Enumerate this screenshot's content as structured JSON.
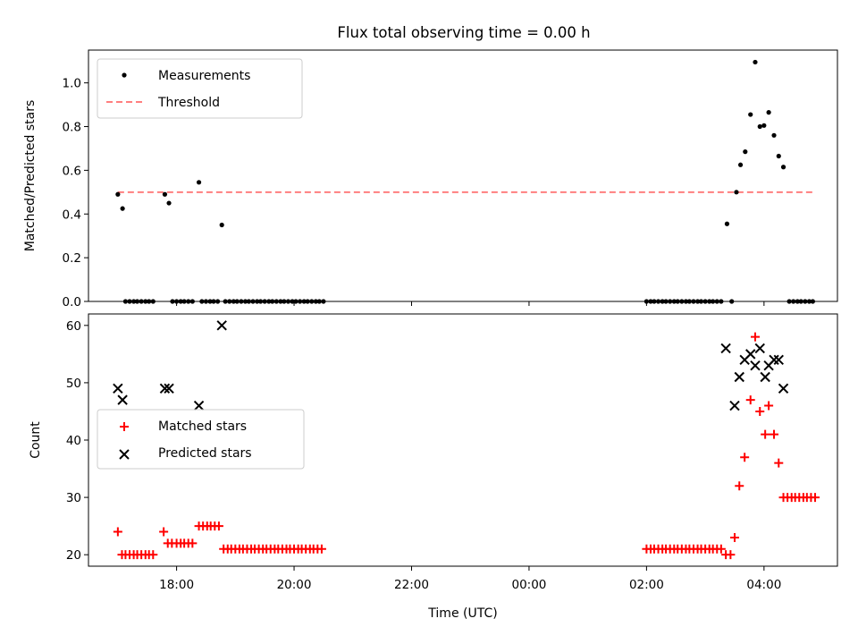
{
  "chart_data": {
    "title": "Flux total observing time = 0.00 h",
    "xlabel": "Time (UTC)",
    "x_ticks": [
      "18:00",
      "20:00",
      "22:00",
      "00:00",
      "02:00",
      "04:00"
    ],
    "x_range_hours": [
      16.5,
      29.25
    ],
    "panels": [
      {
        "type": "scatter",
        "ylabel": "Matched/Predicted stars",
        "ylim": [
          0,
          1.15
        ],
        "y_ticks": [
          "0.0",
          "0.2",
          "0.4",
          "0.6",
          "0.8",
          "1.0"
        ],
        "legend": {
          "placement": "top-left",
          "entries": [
            "Measurements",
            "Threshold"
          ]
        },
        "series": [
          {
            "name": "Measurements",
            "marker": "dot",
            "color": "#000000",
            "points": [
              [
                17.0,
                0.49
              ],
              [
                17.08,
                0.425
              ],
              [
                17.8,
                0.49
              ],
              [
                17.87,
                0.45
              ],
              [
                18.38,
                0.545
              ],
              [
                18.77,
                0.35
              ],
              [
                17.13,
                0
              ],
              [
                17.2,
                0
              ],
              [
                17.27,
                0
              ],
              [
                17.33,
                0
              ],
              [
                17.4,
                0
              ],
              [
                17.47,
                0
              ],
              [
                17.53,
                0
              ],
              [
                17.6,
                0
              ],
              [
                17.93,
                0
              ],
              [
                18.0,
                0
              ],
              [
                18.07,
                0
              ],
              [
                18.13,
                0
              ],
              [
                18.2,
                0
              ],
              [
                18.27,
                0
              ],
              [
                18.43,
                0
              ],
              [
                18.5,
                0
              ],
              [
                18.57,
                0
              ],
              [
                18.63,
                0
              ],
              [
                18.7,
                0
              ],
              [
                18.83,
                0
              ],
              [
                18.9,
                0
              ],
              [
                18.97,
                0
              ],
              [
                19.03,
                0
              ],
              [
                19.1,
                0
              ],
              [
                19.17,
                0
              ],
              [
                19.23,
                0
              ],
              [
                19.3,
                0
              ],
              [
                19.37,
                0
              ],
              [
                19.43,
                0
              ],
              [
                19.5,
                0
              ],
              [
                19.57,
                0
              ],
              [
                19.63,
                0
              ],
              [
                19.7,
                0
              ],
              [
                19.77,
                0
              ],
              [
                19.83,
                0
              ],
              [
                19.9,
                0
              ],
              [
                19.97,
                0
              ],
              [
                20.03,
                0
              ],
              [
                20.1,
                0
              ],
              [
                20.17,
                0
              ],
              [
                20.23,
                0
              ],
              [
                20.3,
                0
              ],
              [
                20.37,
                0
              ],
              [
                20.43,
                0
              ],
              [
                20.5,
                0
              ],
              [
                26.0,
                0
              ],
              [
                26.07,
                0
              ],
              [
                26.13,
                0
              ],
              [
                26.2,
                0
              ],
              [
                26.27,
                0
              ],
              [
                26.33,
                0
              ],
              [
                26.4,
                0
              ],
              [
                26.47,
                0
              ],
              [
                26.53,
                0
              ],
              [
                26.6,
                0
              ],
              [
                26.67,
                0
              ],
              [
                26.73,
                0
              ],
              [
                26.8,
                0
              ],
              [
                26.87,
                0
              ],
              [
                26.93,
                0
              ],
              [
                27.0,
                0
              ],
              [
                27.07,
                0
              ],
              [
                27.13,
                0
              ],
              [
                27.2,
                0
              ],
              [
                27.27,
                0
              ],
              [
                27.37,
                0.355
              ],
              [
                27.45,
                0
              ],
              [
                27.53,
                0.5
              ],
              [
                27.6,
                0.625
              ],
              [
                27.68,
                0.685
              ],
              [
                27.77,
                0.855
              ],
              [
                27.85,
                1.095
              ],
              [
                27.93,
                0.8
              ],
              [
                28.0,
                0.805
              ],
              [
                28.08,
                0.865
              ],
              [
                28.17,
                0.76
              ],
              [
                28.25,
                0.665
              ],
              [
                28.33,
                0.615
              ],
              [
                28.43,
                0
              ],
              [
                28.5,
                0
              ],
              [
                28.57,
                0
              ],
              [
                28.63,
                0
              ],
              [
                28.7,
                0
              ],
              [
                28.77,
                0
              ],
              [
                28.83,
                0
              ]
            ]
          },
          {
            "name": "Threshold",
            "style": "dashed",
            "color": "#ff7f7f",
            "x": [
              17.0,
              28.83
            ],
            "y": [
              0.5,
              0.5
            ]
          }
        ]
      },
      {
        "type": "scatter",
        "ylabel": "Count",
        "ylim": [
          18,
          62
        ],
        "y_ticks": [
          "20",
          "30",
          "40",
          "50",
          "60"
        ],
        "legend": {
          "placement": "center-left",
          "entries": [
            "Matched stars",
            "Predicted stars"
          ]
        },
        "series": [
          {
            "name": "Matched stars",
            "marker": "plus",
            "color": "#ff0000",
            "points": [
              [
                17.0,
                24
              ],
              [
                17.07,
                20
              ],
              [
                17.13,
                20
              ],
              [
                17.2,
                20
              ],
              [
                17.27,
                20
              ],
              [
                17.33,
                20
              ],
              [
                17.4,
                20
              ],
              [
                17.47,
                20
              ],
              [
                17.53,
                20
              ],
              [
                17.6,
                20
              ],
              [
                17.78,
                24
              ],
              [
                17.85,
                22
              ],
              [
                17.92,
                22
              ],
              [
                18.0,
                22
              ],
              [
                18.07,
                22
              ],
              [
                18.13,
                22
              ],
              [
                18.2,
                22
              ],
              [
                18.27,
                22
              ],
              [
                18.38,
                25
              ],
              [
                18.45,
                25
              ],
              [
                18.52,
                25
              ],
              [
                18.58,
                25
              ],
              [
                18.65,
                25
              ],
              [
                18.72,
                25
              ],
              [
                18.8,
                21
              ],
              [
                18.87,
                21
              ],
              [
                18.93,
                21
              ],
              [
                19.0,
                21
              ],
              [
                19.07,
                21
              ],
              [
                19.13,
                21
              ],
              [
                19.2,
                21
              ],
              [
                19.27,
                21
              ],
              [
                19.33,
                21
              ],
              [
                19.4,
                21
              ],
              [
                19.47,
                21
              ],
              [
                19.53,
                21
              ],
              [
                19.6,
                21
              ],
              [
                19.67,
                21
              ],
              [
                19.73,
                21
              ],
              [
                19.8,
                21
              ],
              [
                19.87,
                21
              ],
              [
                19.93,
                21
              ],
              [
                20.0,
                21
              ],
              [
                20.07,
                21
              ],
              [
                20.13,
                21
              ],
              [
                20.2,
                21
              ],
              [
                20.27,
                21
              ],
              [
                20.33,
                21
              ],
              [
                20.4,
                21
              ],
              [
                20.47,
                21
              ],
              [
                26.0,
                21
              ],
              [
                26.07,
                21
              ],
              [
                26.13,
                21
              ],
              [
                26.2,
                21
              ],
              [
                26.27,
                21
              ],
              [
                26.33,
                21
              ],
              [
                26.4,
                21
              ],
              [
                26.47,
                21
              ],
              [
                26.53,
                21
              ],
              [
                26.6,
                21
              ],
              [
                26.67,
                21
              ],
              [
                26.73,
                21
              ],
              [
                26.8,
                21
              ],
              [
                26.87,
                21
              ],
              [
                26.93,
                21
              ],
              [
                27.0,
                21
              ],
              [
                27.07,
                21
              ],
              [
                27.13,
                21
              ],
              [
                27.2,
                21
              ],
              [
                27.27,
                21
              ],
              [
                27.35,
                20
              ],
              [
                27.43,
                20
              ],
              [
                27.5,
                23
              ],
              [
                27.58,
                32
              ],
              [
                27.67,
                37
              ],
              [
                27.77,
                47
              ],
              [
                27.85,
                58
              ],
              [
                27.93,
                45
              ],
              [
                28.02,
                41
              ],
              [
                28.08,
                46
              ],
              [
                28.17,
                41
              ],
              [
                28.25,
                36
              ],
              [
                28.33,
                30
              ],
              [
                28.4,
                30
              ],
              [
                28.47,
                30
              ],
              [
                28.53,
                30
              ],
              [
                28.6,
                30
              ],
              [
                28.67,
                30
              ],
              [
                28.73,
                30
              ],
              [
                28.8,
                30
              ],
              [
                28.87,
                30
              ]
            ]
          },
          {
            "name": "Predicted stars",
            "marker": "x",
            "color": "#000000",
            "points": [
              [
                17.0,
                49
              ],
              [
                17.08,
                47
              ],
              [
                17.8,
                49
              ],
              [
                17.87,
                49
              ],
              [
                18.38,
                46
              ],
              [
                18.77,
                60
              ],
              [
                27.35,
                56
              ],
              [
                27.5,
                46
              ],
              [
                27.58,
                51
              ],
              [
                27.67,
                54
              ],
              [
                27.77,
                55
              ],
              [
                27.85,
                53
              ],
              [
                27.93,
                56
              ],
              [
                28.02,
                51
              ],
              [
                28.08,
                53
              ],
              [
                28.17,
                54
              ],
              [
                28.25,
                54
              ],
              [
                28.33,
                49
              ]
            ]
          }
        ]
      }
    ]
  }
}
